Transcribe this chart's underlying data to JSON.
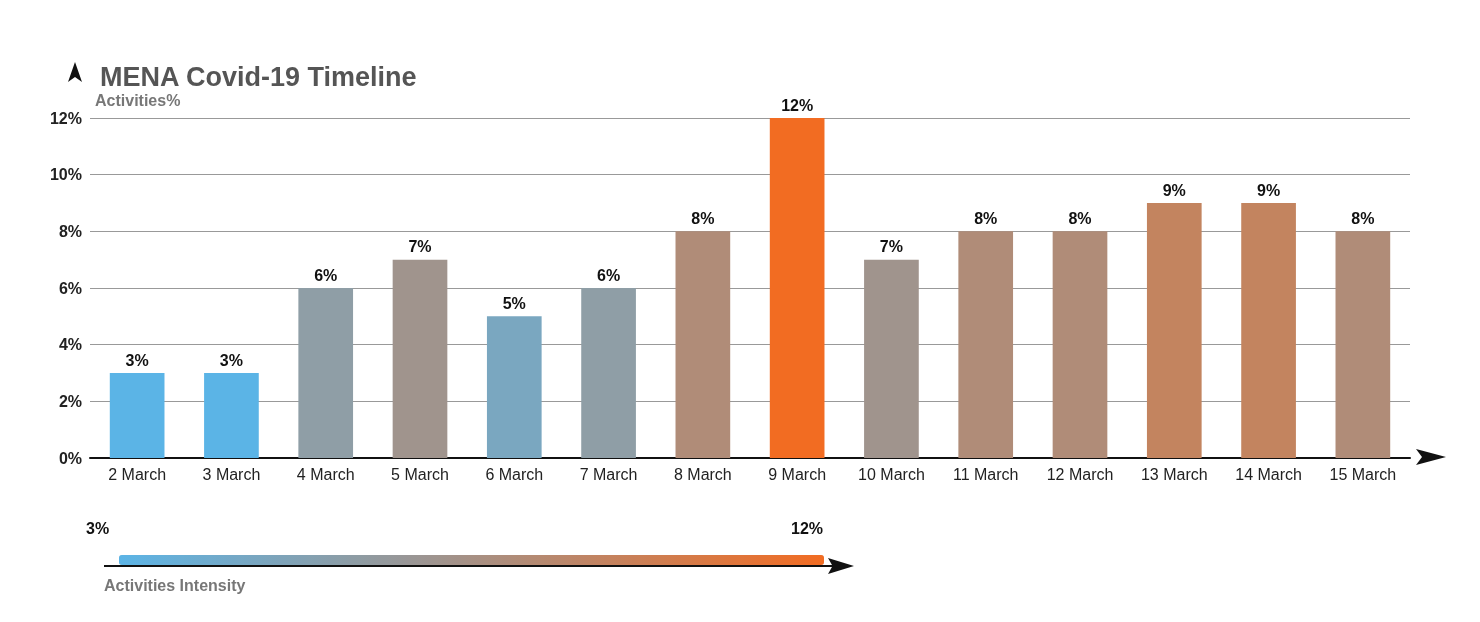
{
  "chart_data": {
    "type": "bar",
    "title": "MENA Covid-19 Timeline",
    "ylabel": "Activities%",
    "categories": [
      "2 March",
      "3 March",
      "4 March",
      "5 March",
      "6 March",
      "7 March",
      "8 March",
      "9 March",
      "10 March",
      "11 March",
      "12 March",
      "13 March",
      "14 March",
      "15 March"
    ],
    "values": [
      3,
      3,
      6,
      7,
      5,
      6,
      8,
      12,
      7,
      8,
      8,
      9,
      9,
      8
    ],
    "value_labels": [
      "3%",
      "3%",
      "6%",
      "7%",
      "5%",
      "6%",
      "8%",
      "12%",
      "7%",
      "8%",
      "8%",
      "9%",
      "9%",
      "8%"
    ],
    "colors": [
      "#5bb4e6",
      "#5bb4e6",
      "#8f9ea6",
      "#a0948d",
      "#7aa7c0",
      "#8f9ea6",
      "#b08c78",
      "#f26c22",
      "#a0948d",
      "#b08c78",
      "#b08c78",
      "#c3845f",
      "#c3845f",
      "#b08c78"
    ],
    "ylim": [
      0,
      12
    ],
    "yticks": [
      {
        "value": 0,
        "label": "0%"
      },
      {
        "value": 2,
        "label": "2%"
      },
      {
        "value": 4,
        "label": "4%"
      },
      {
        "value": 6,
        "label": "6%"
      },
      {
        "value": 8,
        "label": "8%"
      },
      {
        "value": 10,
        "label": "10%"
      },
      {
        "value": 12,
        "label": "12%"
      }
    ],
    "grid": "y",
    "clabel": "Activities Intensity",
    "clim": [
      3,
      12
    ],
    "cticks": [
      {
        "value": 3,
        "label": "3%"
      },
      {
        "value": 12,
        "label": "12%"
      }
    ]
  }
}
